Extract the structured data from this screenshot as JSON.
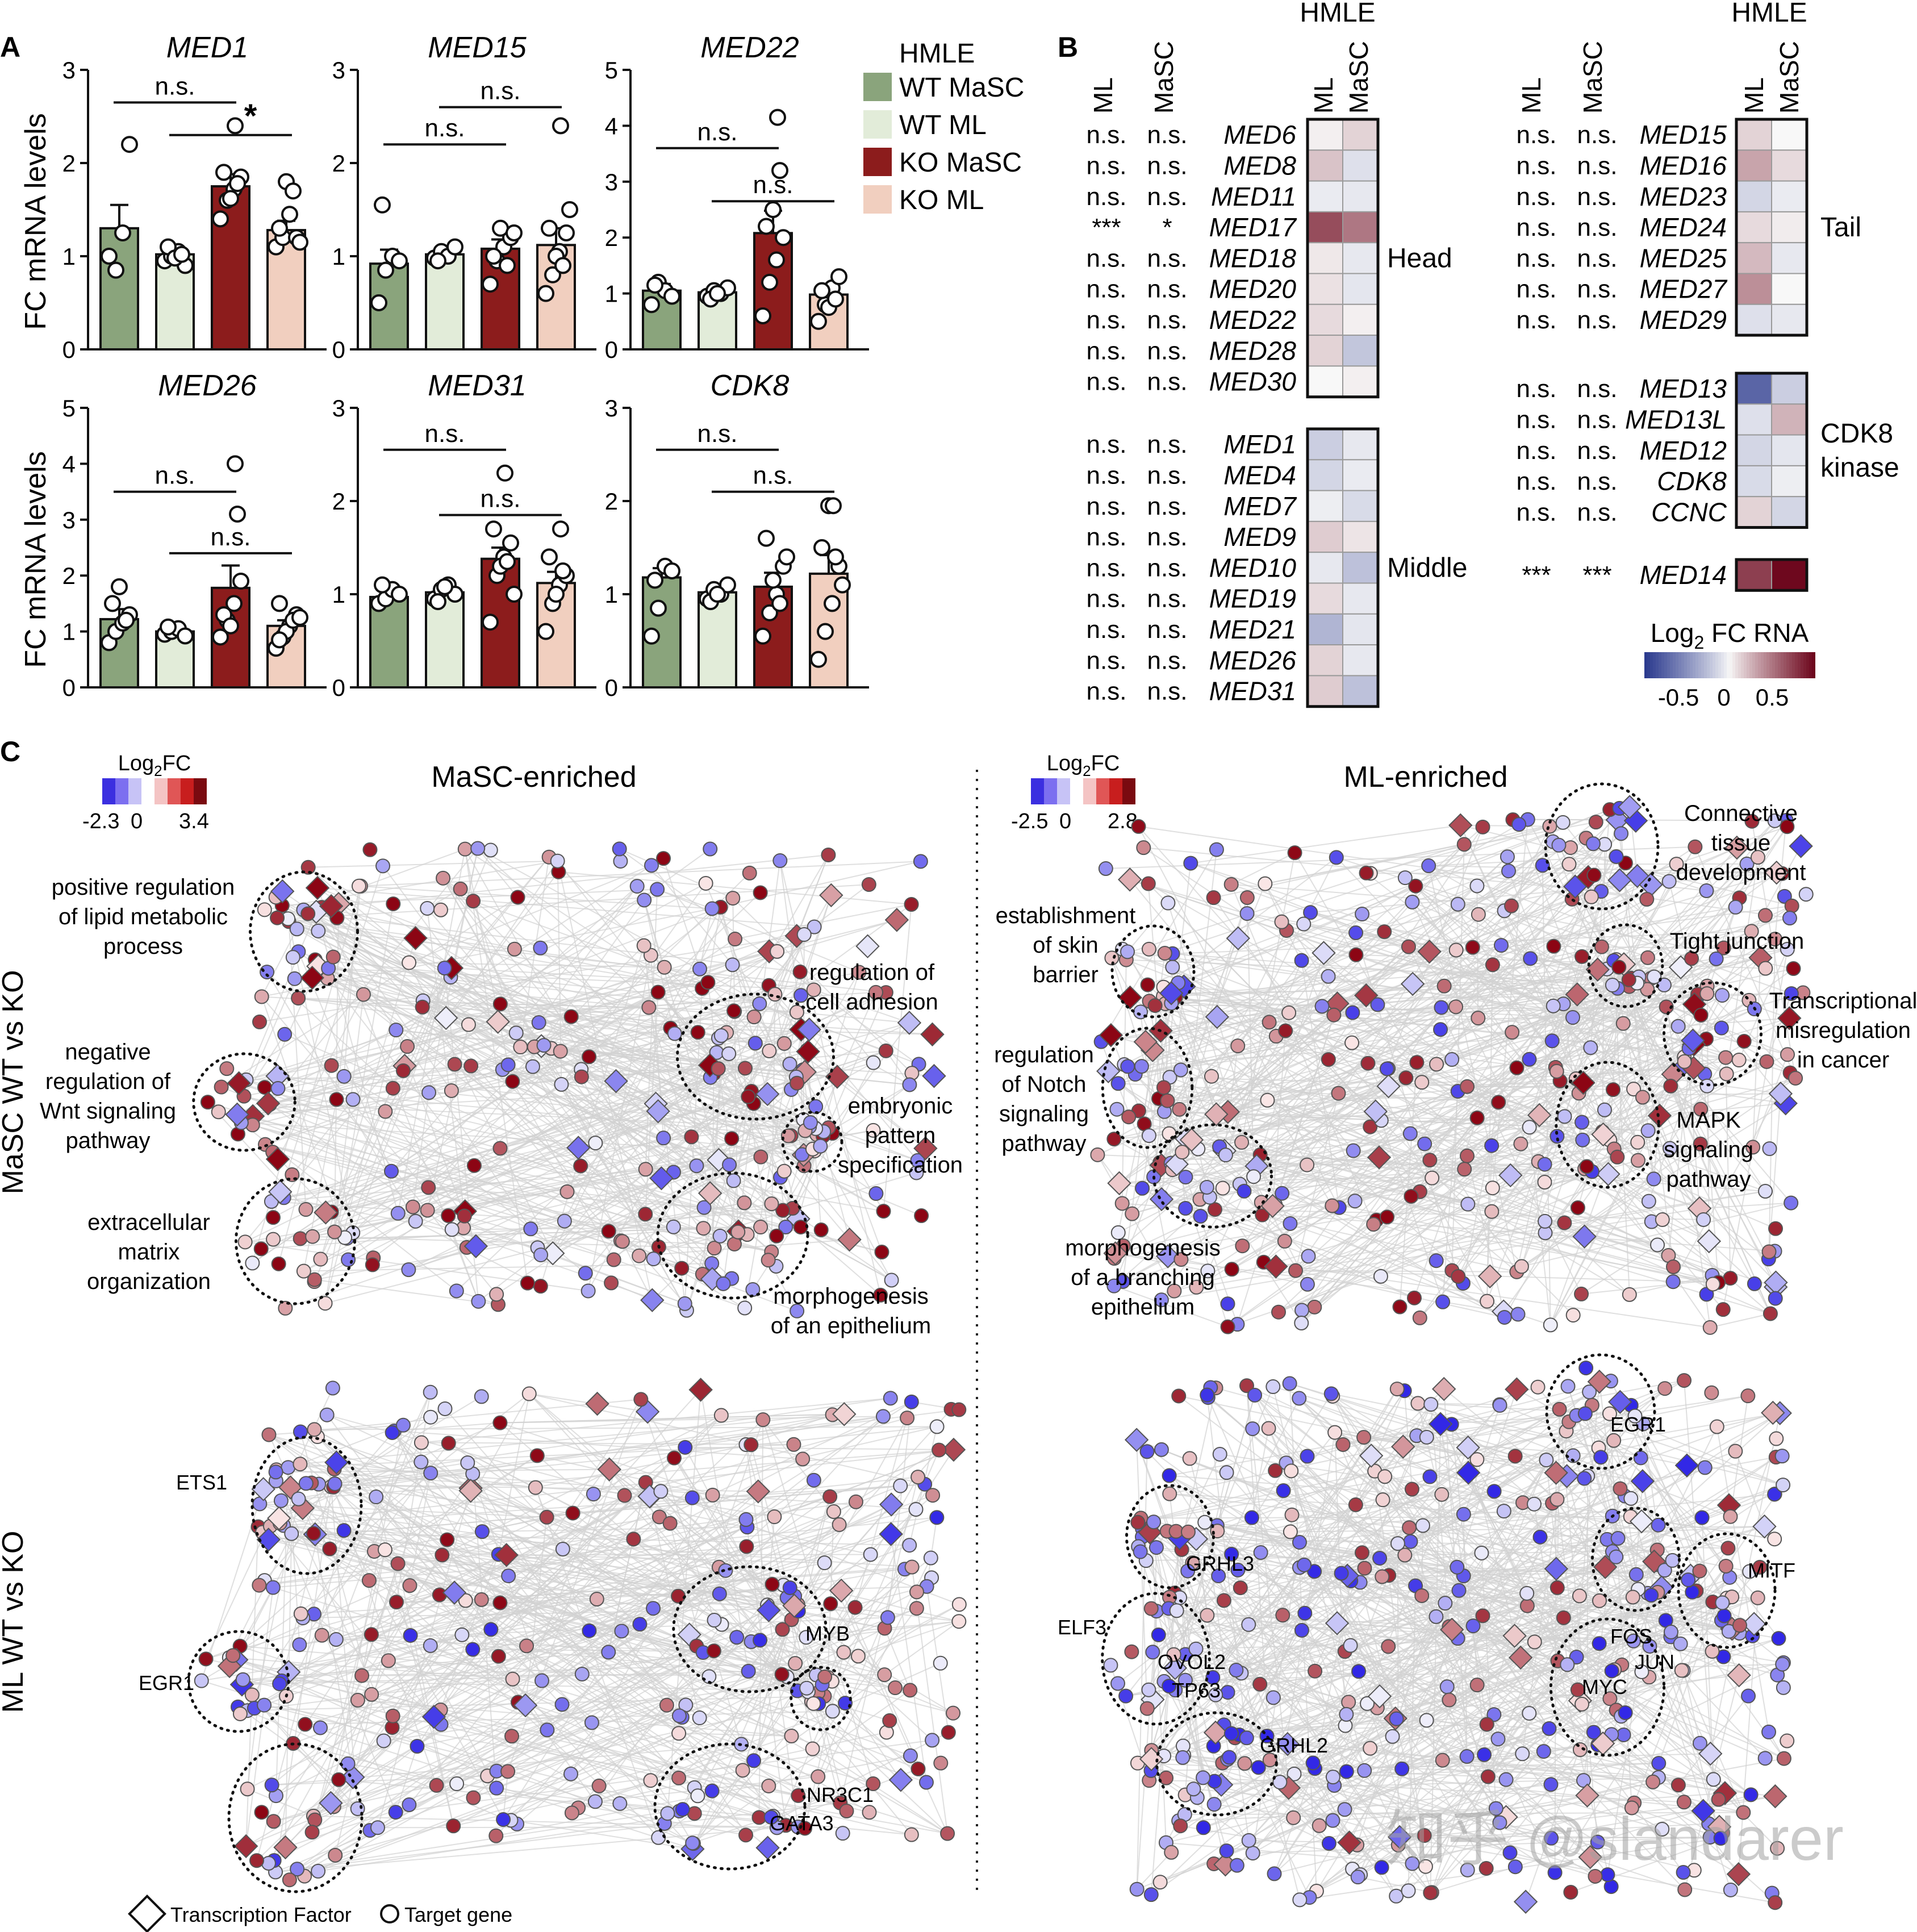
{
  "colors": {
    "wt_masc": "#8aa47c",
    "wt_ml": "#e2ecd9",
    "ko_masc": "#8c1c1c",
    "ko_ml": "#f1cfbf",
    "net_pos": "#b2182b",
    "net_neg": "#3b2fe0"
  },
  "panel_labels": {
    "a": "A",
    "b": "B",
    "c": "C"
  },
  "panel_a": {
    "y_axis_label": "FC mRNA levels",
    "legend": {
      "title": "HMLE",
      "items": [
        "WT MaSC",
        "WT ML",
        "KO MaSC",
        "KO ML"
      ]
    },
    "significance": {
      "ns": "n.s.",
      "star": "*"
    }
  },
  "chart_data": [
    {
      "type": "bar",
      "title": "MED1",
      "categories": [
        "WT MaSC",
        "WT ML",
        "KO MaSC",
        "KO ML"
      ],
      "values": [
        1.3,
        1.02,
        1.75,
        1.28
      ],
      "errors": [
        0.25,
        0.06,
        0.13,
        0.1
      ],
      "ylim": [
        0,
        3
      ],
      "yticks": [
        "0",
        "1",
        "2",
        "3"
      ],
      "points": [
        [
          1.0,
          0.85,
          1.25,
          2.2
        ],
        [
          0.95,
          1.0,
          1.05,
          0.9,
          1.1,
          0.98,
          1.02
        ],
        [
          1.4,
          1.6,
          1.72,
          1.85,
          1.9,
          1.62,
          1.78
        ],
        [
          1.1,
          1.2,
          1.45,
          1.2,
          1.3,
          1.8,
          1.7,
          1.15
        ]
      ],
      "outliers": [
        [
          2.4,
          2
        ]
      ],
      "annotations": [
        {
          "label": "n.s.",
          "from": 0,
          "to": 2,
          "y": 2.65
        },
        {
          "label": "*",
          "from": 1,
          "to": 3,
          "y": 2.3
        }
      ]
    },
    {
      "type": "bar",
      "title": "MED15",
      "categories": [
        "WT MaSC",
        "WT ML",
        "KO MaSC",
        "KO ML"
      ],
      "values": [
        0.92,
        1.02,
        1.08,
        1.12
      ],
      "errors": [
        0.15,
        0.06,
        0.1,
        0.18
      ],
      "ylim": [
        0,
        3
      ],
      "yticks": [
        "0",
        "1",
        "2",
        "3"
      ],
      "points": [
        [
          0.5,
          0.85,
          1.0,
          0.95,
          1.55
        ],
        [
          0.98,
          1.05,
          1.0,
          1.1,
          0.95
        ],
        [
          0.7,
          0.95,
          1.1,
          1.2,
          1.0,
          1.3,
          0.9,
          1.25
        ],
        [
          0.6,
          0.8,
          1.05,
          1.25,
          1.3,
          1.0,
          0.9,
          1.5
        ]
      ],
      "outliers": [
        [
          2.4,
          3
        ]
      ],
      "annotations": [
        {
          "label": "n.s.",
          "from": 0,
          "to": 2,
          "y": 2.2
        },
        {
          "label": "n.s.",
          "from": 1,
          "to": 3,
          "y": 2.6
        }
      ]
    },
    {
      "type": "bar",
      "title": "MED22",
      "categories": [
        "WT MaSC",
        "WT ML",
        "KO MaSC",
        "KO ML"
      ],
      "values": [
        1.05,
        1.02,
        2.08,
        0.98
      ],
      "errors": [
        0.12,
        0.05,
        0.4,
        0.15
      ],
      "ylim": [
        0,
        5
      ],
      "yticks": [
        "0",
        "1",
        "2",
        "3",
        "4",
        "5"
      ],
      "points": [
        [
          0.8,
          1.2,
          1.05,
          0.95,
          1.15
        ],
        [
          0.95,
          1.05,
          1.0,
          1.1,
          0.9,
          1.0
        ],
        [
          0.6,
          1.2,
          1.6,
          2.0,
          2.2,
          2.5,
          3.2
        ],
        [
          0.5,
          0.8,
          1.1,
          1.3,
          1.05,
          0.75,
          0.9
        ]
      ],
      "outliers": [
        [
          4.15,
          2
        ]
      ],
      "annotations": [
        {
          "label": "n.s.",
          "from": 0,
          "to": 2,
          "y": 3.6
        },
        {
          "label": "n.s.",
          "from": 1,
          "to": 3,
          "y": 2.65
        }
      ]
    },
    {
      "type": "bar",
      "title": "MED26",
      "categories": [
        "WT MaSC",
        "WT ML",
        "KO MaSC",
        "KO ML"
      ],
      "values": [
        1.22,
        1.0,
        1.78,
        1.1
      ],
      "errors": [
        0.18,
        0.05,
        0.4,
        0.1
      ],
      "ylim": [
        0,
        5
      ],
      "yticks": [
        "0",
        "1",
        "2",
        "3",
        "4",
        "5"
      ],
      "points": [
        [
          0.8,
          1.0,
          1.15,
          1.3,
          1.5,
          1.8,
          1.2
        ],
        [
          0.95,
          1.0,
          1.05,
          0.92,
          1.08
        ],
        [
          0.9,
          1.2,
          1.5,
          1.9,
          1.3,
          1.1,
          3.1
        ],
        [
          0.7,
          0.9,
          1.1,
          1.3,
          1.5,
          1.0,
          1.2,
          1.25,
          0.85
        ]
      ],
      "outliers": [
        [
          4.0,
          2
        ]
      ],
      "annotations": [
        {
          "label": "n.s.",
          "from": 0,
          "to": 2,
          "y": 3.5
        },
        {
          "label": "n.s.",
          "from": 1,
          "to": 3,
          "y": 2.4
        }
      ]
    },
    {
      "type": "bar",
      "title": "MED31",
      "categories": [
        "WT MaSC",
        "WT ML",
        "KO MaSC",
        "KO ML"
      ],
      "values": [
        0.97,
        1.02,
        1.38,
        1.12
      ],
      "errors": [
        0.05,
        0.05,
        0.12,
        0.12
      ],
      "ylim": [
        0,
        3
      ],
      "yticks": [
        "0",
        "1",
        "2",
        "3"
      ],
      "points": [
        [
          0.9,
          0.95,
          1.05,
          1.0,
          1.1
        ],
        [
          0.95,
          1.05,
          1.1,
          1.0,
          0.92,
          1.08
        ],
        [
          0.7,
          1.2,
          1.4,
          1.55,
          1.7,
          1.3,
          1.35,
          1.0
        ],
        [
          0.6,
          0.9,
          1.1,
          1.2,
          1.4,
          1.0,
          1.25
        ]
      ],
      "outliers": [
        [
          2.3,
          2
        ],
        [
          1.7,
          3
        ]
      ],
      "annotations": [
        {
          "label": "n.s.",
          "from": 0,
          "to": 2,
          "y": 2.55
        },
        {
          "label": "n.s.",
          "from": 1,
          "to": 3,
          "y": 1.85
        }
      ]
    },
    {
      "type": "bar",
      "title": "CDK8",
      "categories": [
        "WT MaSC",
        "WT ML",
        "KO MaSC",
        "KO ML"
      ],
      "values": [
        1.18,
        1.02,
        1.08,
        1.22
      ],
      "errors": [
        0.1,
        0.05,
        0.15,
        0.2
      ],
      "ylim": [
        0,
        3
      ],
      "yticks": [
        "0",
        "1",
        "2",
        "3"
      ],
      "points": [
        [
          0.55,
          0.85,
          1.3,
          1.25,
          1.15
        ],
        [
          0.95,
          1.05,
          1.0,
          1.1,
          0.92,
          1.0
        ],
        [
          0.55,
          0.8,
          1.0,
          1.3,
          1.6,
          1.15,
          0.9,
          1.4
        ],
        [
          0.3,
          0.6,
          0.9,
          1.3,
          1.5,
          1.95,
          1.4,
          1.1
        ]
      ],
      "outliers": [
        [
          1.95,
          3
        ]
      ],
      "annotations": [
        {
          "label": "n.s.",
          "from": 0,
          "to": 2,
          "y": 2.55
        },
        {
          "label": "n.s.",
          "from": 1,
          "to": 3,
          "y": 2.1
        }
      ]
    }
  ],
  "panel_b": {
    "group_header": "HMLE",
    "col_labels_left": [
      "ML",
      "MaSC"
    ],
    "col_labels_heat": [
      "ML",
      "MaSC"
    ],
    "colorbar": {
      "title_main": "Log",
      "title_sub": "2",
      "title_rest": " FC RNA",
      "ticks": [
        "-0.5",
        "0",
        "0.5"
      ]
    },
    "blocks_left": [
      {
        "label": "Head",
        "rows": [
          {
            "gene": "MED6",
            "ml_sig": "n.s.",
            "masc_sig": "n.s.",
            "ml": 0.02,
            "masc": 0.1
          },
          {
            "gene": "MED8",
            "ml_sig": "n.s.",
            "masc_sig": "n.s.",
            "ml": 0.15,
            "masc": -0.08
          },
          {
            "gene": "MED11",
            "ml_sig": "n.s.",
            "masc_sig": "n.s.",
            "ml": -0.04,
            "masc": -0.05
          },
          {
            "gene": "MED17",
            "ml_sig": "***",
            "masc_sig": "*",
            "ml": 0.55,
            "masc": 0.4
          },
          {
            "gene": "MED18",
            "ml_sig": "n.s.",
            "masc_sig": "n.s.",
            "ml": 0.04,
            "masc": -0.05
          },
          {
            "gene": "MED20",
            "ml_sig": "n.s.",
            "masc_sig": "n.s.",
            "ml": 0.06,
            "masc": -0.06
          },
          {
            "gene": "MED22",
            "ml_sig": "n.s.",
            "masc_sig": "n.s.",
            "ml": 0.08,
            "masc": 0.02
          },
          {
            "gene": "MED28",
            "ml_sig": "n.s.",
            "masc_sig": "n.s.",
            "ml": 0.1,
            "masc": -0.18
          },
          {
            "gene": "MED30",
            "ml_sig": "n.s.",
            "masc_sig": "n.s.",
            "ml": 0.0,
            "masc": 0.02
          }
        ]
      },
      {
        "label": "Middle",
        "rows": [
          {
            "gene": "MED1",
            "ml_sig": "n.s.",
            "masc_sig": "n.s.",
            "ml": -0.15,
            "masc": -0.05
          },
          {
            "gene": "MED4",
            "ml_sig": "n.s.",
            "masc_sig": "n.s.",
            "ml": -0.12,
            "masc": -0.04
          },
          {
            "gene": "MED7",
            "ml_sig": "n.s.",
            "masc_sig": "n.s.",
            "ml": -0.03,
            "masc": -0.1
          },
          {
            "gene": "MED9",
            "ml_sig": "n.s.",
            "masc_sig": "n.s.",
            "ml": 0.12,
            "masc": 0.05
          },
          {
            "gene": "MED10",
            "ml_sig": "n.s.",
            "masc_sig": "n.s.",
            "ml": -0.05,
            "masc": -0.2
          },
          {
            "gene": "MED19",
            "ml_sig": "n.s.",
            "masc_sig": "n.s.",
            "ml": 0.08,
            "masc": -0.05
          },
          {
            "gene": "MED21",
            "ml_sig": "n.s.",
            "masc_sig": "n.s.",
            "ml": -0.25,
            "masc": -0.06
          },
          {
            "gene": "MED26",
            "ml_sig": "n.s.",
            "masc_sig": "n.s.",
            "ml": 0.1,
            "masc": -0.05
          },
          {
            "gene": "MED31",
            "ml_sig": "n.s.",
            "masc_sig": "n.s.",
            "ml": 0.12,
            "masc": -0.2
          }
        ]
      }
    ],
    "blocks_right": [
      {
        "label": "Tail",
        "rows": [
          {
            "gene": "MED15",
            "ml_sig": "n.s.",
            "masc_sig": "n.s.",
            "ml": 0.1,
            "masc": 0.0
          },
          {
            "gene": "MED16",
            "ml_sig": "n.s.",
            "masc_sig": "n.s.",
            "ml": 0.25,
            "masc": 0.08
          },
          {
            "gene": "MED23",
            "ml_sig": "n.s.",
            "masc_sig": "n.s.",
            "ml": -0.12,
            "masc": -0.04
          },
          {
            "gene": "MED24",
            "ml_sig": "n.s.",
            "masc_sig": "n.s.",
            "ml": 0.08,
            "masc": 0.03
          },
          {
            "gene": "MED25",
            "ml_sig": "n.s.",
            "masc_sig": "n.s.",
            "ml": 0.18,
            "masc": -0.05
          },
          {
            "gene": "MED27",
            "ml_sig": "n.s.",
            "masc_sig": "n.s.",
            "ml": 0.32,
            "masc": 0.0
          },
          {
            "gene": "MED29",
            "ml_sig": "n.s.",
            "masc_sig": "n.s.",
            "ml": -0.08,
            "masc": -0.05
          }
        ]
      },
      {
        "label": "CDK8\nkinase",
        "label_lines": [
          "CDK8",
          "kinase"
        ],
        "rows": [
          {
            "gene": "MED13",
            "ml_sig": "n.s.",
            "masc_sig": "n.s.",
            "ml": -0.6,
            "masc": -0.15
          },
          {
            "gene": "MED13L",
            "ml_sig": "n.s.",
            "masc_sig": "n.s.",
            "ml": -0.08,
            "masc": 0.2
          },
          {
            "gene": "MED12",
            "ml_sig": "n.s.",
            "masc_sig": "n.s.",
            "ml": -0.12,
            "masc": -0.06
          },
          {
            "gene": "CDK8",
            "ml_sig": "n.s.",
            "masc_sig": "n.s.",
            "ml": -0.1,
            "masc": -0.03
          },
          {
            "gene": "CCNC",
            "ml_sig": "n.s.",
            "masc_sig": "n.s.",
            "ml": 0.1,
            "masc": -0.12
          }
        ]
      },
      {
        "label": "",
        "rows": [
          {
            "gene": "MED14",
            "ml_sig": "***",
            "masc_sig": "***",
            "ml": 0.6,
            "masc": 0.85
          }
        ]
      }
    ]
  },
  "panel_c": {
    "col_titles": [
      "MaSC-enriched",
      "ML-enriched"
    ],
    "row_titles": [
      "MaSC WT vs KO",
      "ML WT vs KO"
    ],
    "colorbars": [
      {
        "title": "Log",
        "sub": "2",
        "rest": "FC",
        "min": "-2.3",
        "zero": "0",
        "max": "3.4"
      },
      {
        "title": "Log",
        "sub": "2",
        "rest": "FC",
        "min": "-2.5",
        "zero": "0",
        "max": "2.8"
      }
    ],
    "q1_labels": [
      {
        "lines": [
          "positive regulation",
          "of lipid metabolic",
          "process"
        ]
      },
      {
        "lines": [
          "negative",
          "regulation of",
          "Wnt signaling",
          "pathway"
        ]
      },
      {
        "lines": [
          "extracellular",
          "matrix",
          "organization"
        ]
      },
      {
        "lines": [
          "regulation of",
          "cell adhesion"
        ]
      },
      {
        "lines": [
          "embryonic",
          "pattern",
          "specification"
        ]
      },
      {
        "lines": [
          "morphogenesis",
          "of an epithelium"
        ]
      }
    ],
    "q2_labels": [
      {
        "lines": [
          "Connective",
          "tissue",
          "development"
        ]
      },
      {
        "lines": [
          "establishment",
          "of skin",
          "barrier"
        ]
      },
      {
        "lines": [
          "Tight junction"
        ]
      },
      {
        "lines": [
          "Transcriptional",
          "misregulation",
          "in cancer"
        ]
      },
      {
        "lines": [
          "regulation",
          "of Notch",
          "signaling",
          "pathway"
        ]
      },
      {
        "lines": [
          "MAPK",
          "signaling",
          "pathway"
        ]
      },
      {
        "lines": [
          "morphogenesis",
          "of a branching",
          "epithelium"
        ]
      }
    ],
    "q3_tf_labels": [
      "ETS1",
      "EGR1",
      "MYB",
      "NR3C1",
      "GATA3"
    ],
    "q4_tf_labels": [
      "EGR1",
      "GRHL3",
      "MITF",
      "ELF3",
      "OVOL2",
      "TP63",
      "FOS",
      "JUN",
      "MYC",
      "GRHL2"
    ],
    "legend": {
      "tf": "Transcription Factor",
      "target": "Target gene"
    }
  },
  "watermark": "知乎 @slandarer"
}
